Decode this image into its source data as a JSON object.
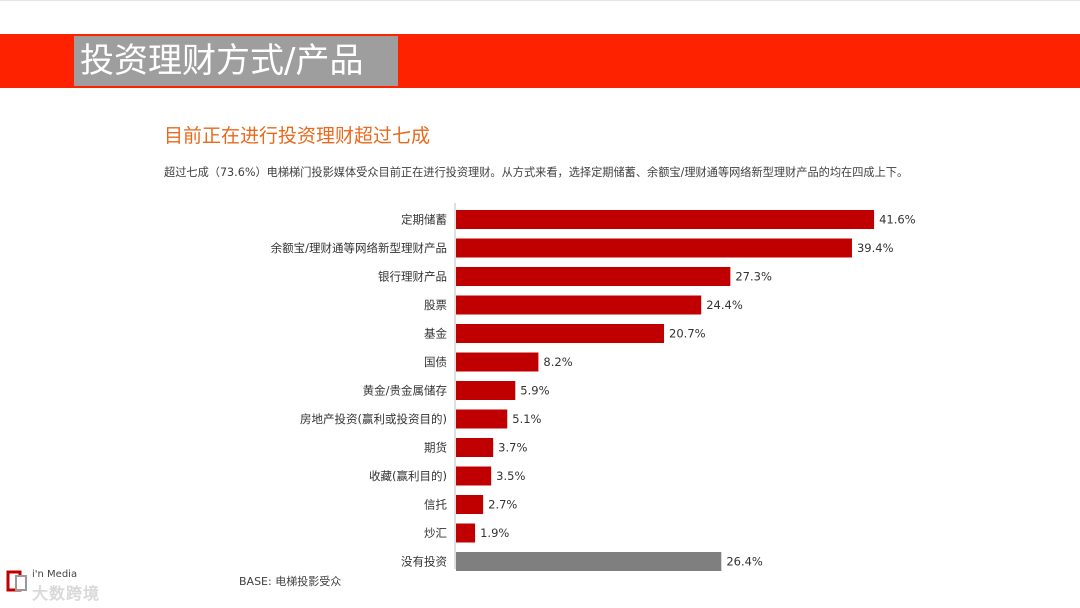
{
  "header": {
    "title": "投资理财方式/产品"
  },
  "subtitle": "目前正在进行投资理财超过七成",
  "description": "超过七成（73.6%）电梯梯门投影媒体受众目前正在进行投资理财。从方式来看，选择定期储蓄、余额宝/理财通等网络新型理财产品的均在四成上下。",
  "base_note": "BASE: 电梯投影受众",
  "watermark": {
    "brand": "i'n Media",
    "overlay": "大数跨境"
  },
  "chart_data": {
    "type": "bar",
    "orientation": "horizontal",
    "title": "",
    "xlabel": "",
    "ylabel": "",
    "xlim": [
      0,
      45
    ],
    "categories": [
      "定期储蓄",
      "余额宝/理财通等网络新型理财产品",
      "银行理财产品",
      "股票",
      "基金",
      "国债",
      "黄金/贵金属储存",
      "房地产投资(赢利或投资目的)",
      "期货",
      "收藏(赢利目的)",
      "信托",
      "炒汇",
      "没有投资"
    ],
    "values": [
      41.6,
      39.4,
      27.3,
      24.4,
      20.7,
      8.2,
      5.9,
      5.1,
      3.7,
      3.5,
      2.7,
      1.9,
      26.4
    ],
    "value_labels": [
      "41.6%",
      "39.4%",
      "27.3%",
      "24.4%",
      "20.7%",
      "8.2%",
      "5.9%",
      "5.1%",
      "3.7%",
      "3.5%",
      "2.7%",
      "1.9%",
      "26.4%"
    ],
    "colors": {
      "invest": "#c00000",
      "none": "#7f7f7f"
    },
    "grid": false,
    "legend": "none"
  }
}
